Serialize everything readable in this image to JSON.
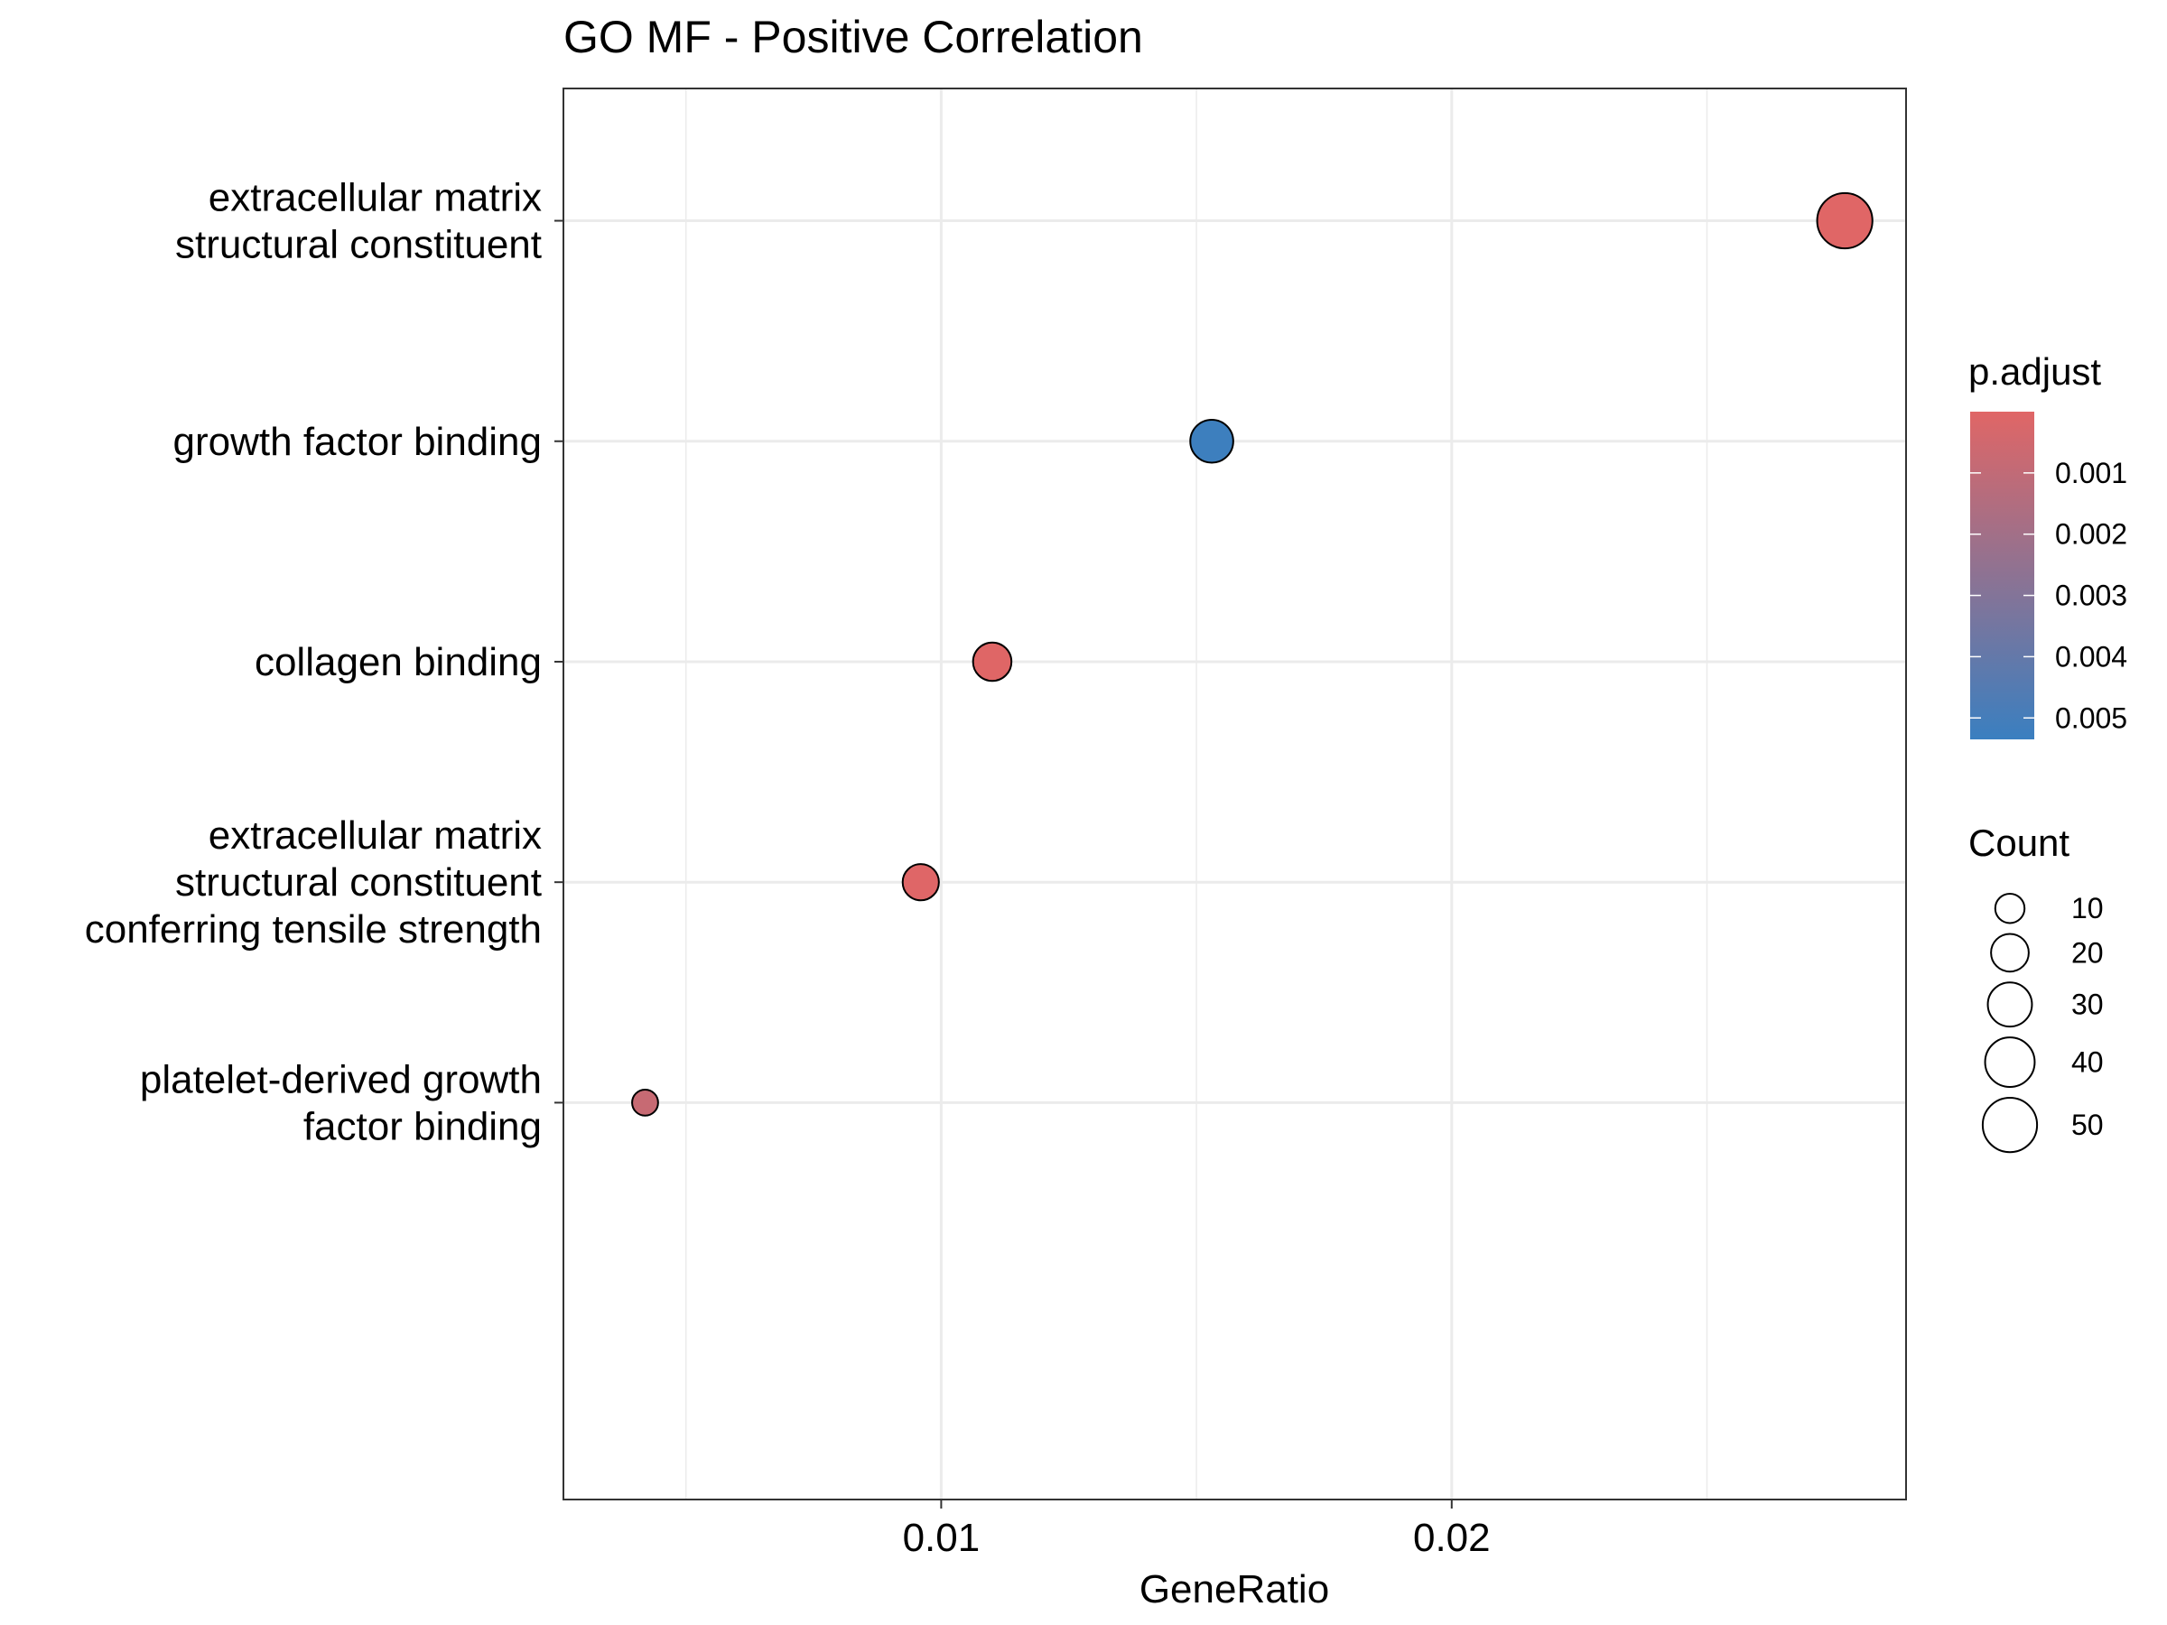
{
  "chart_data": {
    "type": "scatter",
    "title": "GO MF - Positive Correlation",
    "xlabel": "GeneRatio",
    "ylabel": "",
    "xlim": [
      0.0026,
      0.0289
    ],
    "xticks": [
      {
        "value": 0.01,
        "label": "0.01"
      },
      {
        "value": 0.02,
        "label": "0.02"
      }
    ],
    "minor_xticks": [
      0.005,
      0.015,
      0.025
    ],
    "grid": true,
    "categories": [
      {
        "lines": [
          "extracellular matrix",
          "structural constituent"
        ]
      },
      {
        "lines": [
          "growth factor binding"
        ]
      },
      {
        "lines": [
          "collagen binding"
        ]
      },
      {
        "lines": [
          "extracellular matrix",
          "structural constituent",
          "conferring tensile strength"
        ]
      },
      {
        "lines": [
          "platelet-derived growth",
          "factor binding"
        ]
      }
    ],
    "points": [
      {
        "category": 0,
        "x": 0.0277,
        "count": 52,
        "p_adjust": 1e-05
      },
      {
        "category": 1,
        "x": 0.0153,
        "count": 28,
        "p_adjust": 0.00525
      },
      {
        "category": 2,
        "x": 0.011,
        "count": 21,
        "p_adjust": 2e-05
      },
      {
        "category": 3,
        "x": 0.0096,
        "count": 18,
        "p_adjust": 3e-05
      },
      {
        "category": 4,
        "x": 0.0042,
        "count": 7,
        "p_adjust": 0.0008
      }
    ],
    "legend_color": {
      "title": "p.adjust",
      "placement": "right",
      "low_color": "#E06666",
      "high_color": "#3A7FC0",
      "range": [
        0.0,
        0.00535
      ],
      "ticks": [
        {
          "value": 0.001,
          "label": "0.001"
        },
        {
          "value": 0.002,
          "label": "0.002"
        },
        {
          "value": 0.003,
          "label": "0.003"
        },
        {
          "value": 0.004,
          "label": "0.004"
        },
        {
          "value": 0.005,
          "label": "0.005"
        }
      ]
    },
    "legend_size": {
      "title": "Count",
      "placement": "right",
      "entries": [
        {
          "value": 10,
          "label": "10"
        },
        {
          "value": 20,
          "label": "20"
        },
        {
          "value": 30,
          "label": "30"
        },
        {
          "value": 40,
          "label": "40"
        },
        {
          "value": 50,
          "label": "50"
        }
      ]
    }
  }
}
